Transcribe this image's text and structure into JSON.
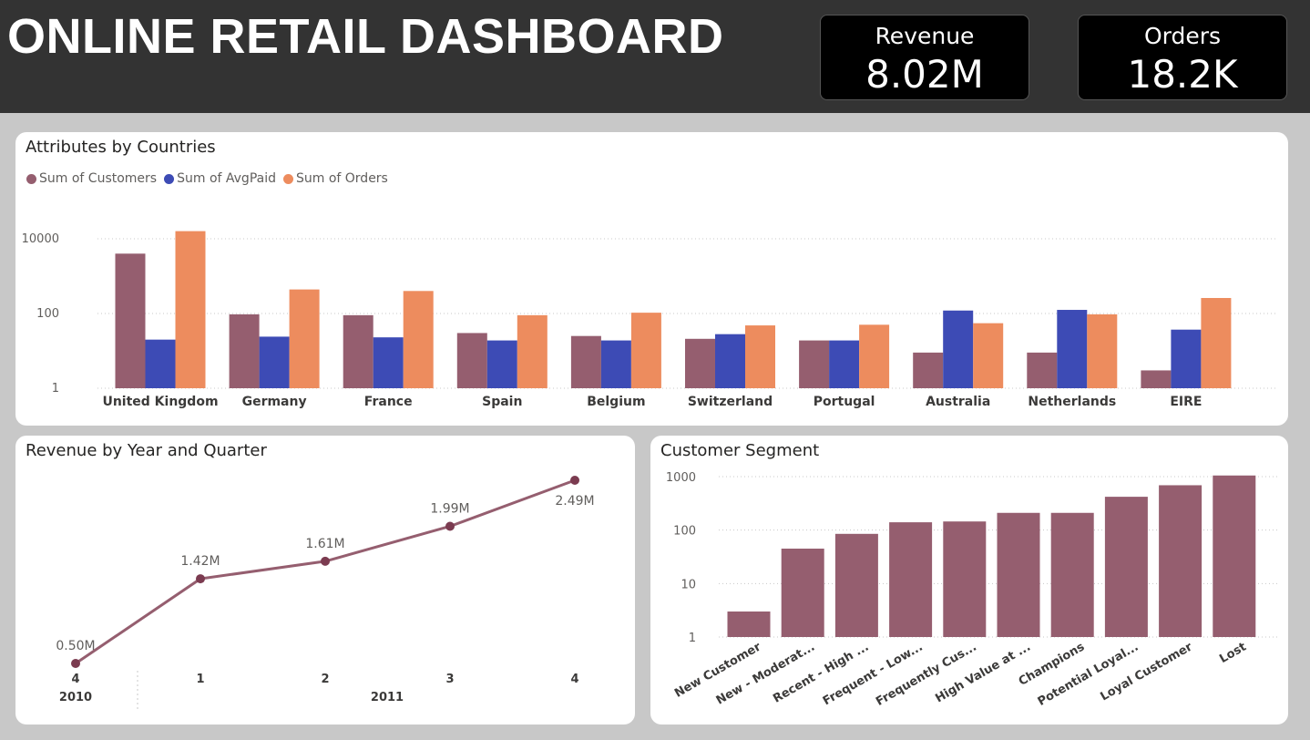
{
  "header": {
    "title": "ONLINE RETAIL DASHBOARD",
    "kpis": [
      {
        "label": "Revenue",
        "value": "8.02M"
      },
      {
        "label": "Orders",
        "value": "18.2K"
      }
    ]
  },
  "colors": {
    "customers": "#955e6f",
    "avgpaid": "#3d4bb5",
    "orders": "#ed8c5e",
    "line": "#955e6f",
    "segment": "#955e6f",
    "header_bg": "#333333"
  },
  "chart_data": [
    {
      "id": "attributes",
      "type": "bar",
      "title": "Attributes by Countries",
      "scale": "log",
      "yticks": [
        "10000",
        "100",
        "1"
      ],
      "legend_position": "top-left",
      "grid": true,
      "categories": [
        "United Kingdom",
        "Germany",
        "France",
        "Spain",
        "Belgium",
        "Switzerland",
        "Portugal",
        "Australia",
        "Netherlands",
        "EIRE"
      ],
      "series": [
        {
          "name": "Sum of Customers",
          "values": [
            4000,
            95,
            90,
            30,
            25,
            21,
            19,
            9,
            9,
            3
          ]
        },
        {
          "name": "Sum of AvgPaid",
          "values": [
            20,
            24,
            23,
            19,
            19,
            28,
            19,
            120,
            125,
            37
          ]
        },
        {
          "name": "Sum of Orders",
          "values": [
            16000,
            440,
            400,
            90,
            105,
            48,
            50,
            55,
            95,
            260
          ]
        }
      ]
    },
    {
      "id": "revenue",
      "type": "line",
      "title": "Revenue by Year and Quarter",
      "x_quarters": [
        "4",
        "1",
        "2",
        "3",
        "4"
      ],
      "x_years": [
        "2010",
        "2011"
      ],
      "values": [
        0.5,
        1.42,
        1.61,
        1.99,
        2.49
      ],
      "labels": [
        "0.50M",
        "1.42M",
        "1.61M",
        "1.99M",
        "2.49M"
      ]
    },
    {
      "id": "segment",
      "type": "bar",
      "title": "Customer Segment",
      "scale": "log",
      "yticks": [
        "1000",
        "100",
        "10",
        "1"
      ],
      "grid": true,
      "categories": [
        "New Customer",
        "New - Moderat...",
        "Recent - High ...",
        "Frequent - Low...",
        "Frequently Cus...",
        "High Value at ...",
        "Champions",
        "Potential Loyal...",
        "Loyal Customer",
        "Lost"
      ],
      "values": [
        3,
        45,
        85,
        140,
        145,
        210,
        210,
        420,
        690,
        1050
      ]
    }
  ]
}
